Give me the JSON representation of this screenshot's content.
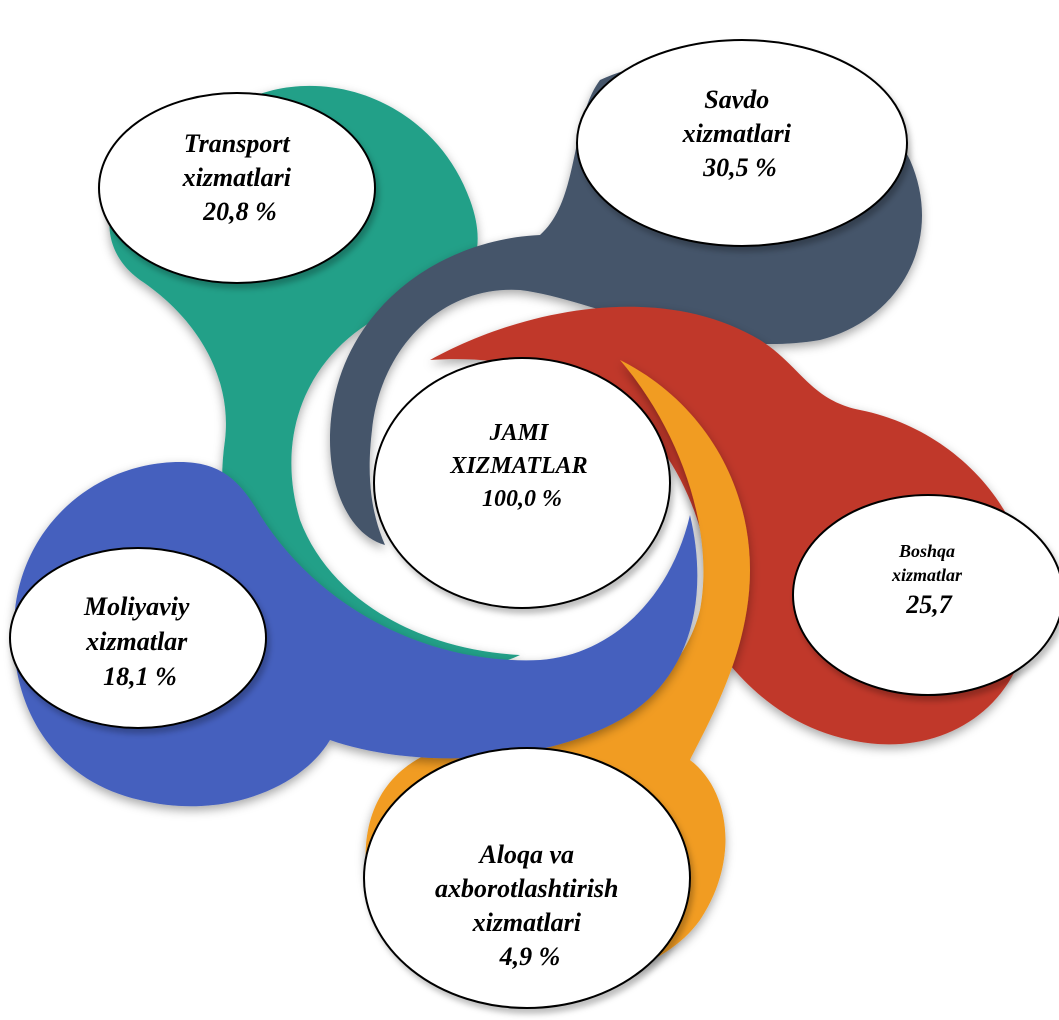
{
  "center": {
    "lines": [
      "JAMI",
      "XIZMATLAR",
      "100,0 %"
    ]
  },
  "segments": [
    {
      "id": "transport",
      "lines": [
        "Transport",
        "xizmatlari",
        "20,8 %"
      ],
      "color": "#21A088"
    },
    {
      "id": "savdo",
      "lines": [
        "Savdo",
        "xizmatlari",
        "30,5 %"
      ],
      "color": "#44546A"
    },
    {
      "id": "boshqa",
      "lines": [
        "Boshqa",
        "xizmatlar",
        "25,7"
      ],
      "color": "#C0392B"
    },
    {
      "id": "aloqa",
      "lines": [
        "Aloqa va",
        "axborotlashtirish",
        "xizmatlari",
        "4,9 %"
      ],
      "color": "#F19C20"
    },
    {
      "id": "moliyaviy",
      "lines": [
        "Moliyaviy",
        "xizmatlar",
        "18,1 %"
      ],
      "color": "#4561BE"
    }
  ]
}
